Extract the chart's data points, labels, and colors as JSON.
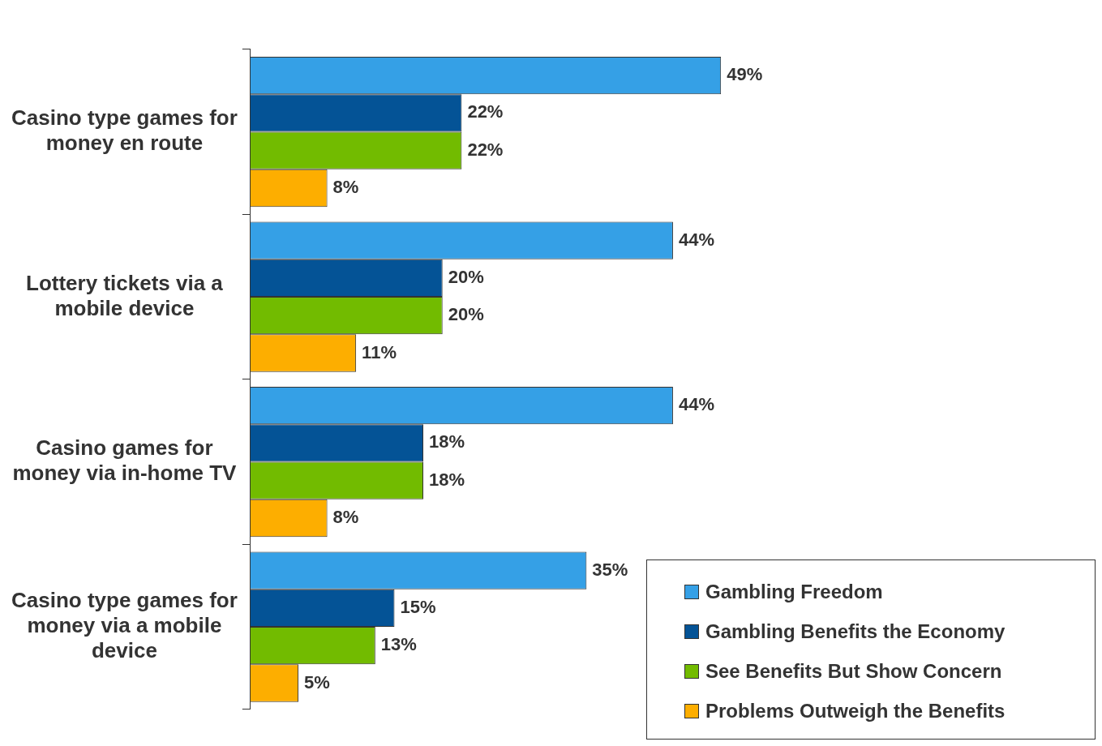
{
  "chart_data": {
    "type": "bar",
    "orientation": "horizontal",
    "categories": [
      "Casino type games for money en route",
      "Lottery tickets via a mobile device",
      "Casino games for money via in-home TV",
      "Casino type games for money via a mobile device"
    ],
    "series": [
      {
        "name": "Gambling Freedom",
        "color": "#35a0e6",
        "values": [
          49,
          44,
          44,
          35
        ],
        "value_labels": [
          "49%",
          "44%",
          "44%",
          "35%"
        ]
      },
      {
        "name": "Gambling Benefits the Economy",
        "color": "#045396",
        "values": [
          22,
          20,
          18,
          15
        ],
        "value_labels": [
          "22%",
          "20%",
          "18%",
          "15%"
        ]
      },
      {
        "name": "See Benefits But Show Concern",
        "color": "#72bb00",
        "values": [
          22,
          20,
          18,
          13
        ],
        "value_labels": [
          "22%",
          "20%",
          "18%",
          "13%"
        ]
      },
      {
        "name": "Problems Outweigh the Benefits",
        "color": "#fdae00",
        "values": [
          8,
          11,
          8,
          5
        ],
        "value_labels": [
          "8%",
          "11%",
          "8%",
          "5%"
        ]
      }
    ],
    "legend": "bottom right",
    "grid": false
  }
}
